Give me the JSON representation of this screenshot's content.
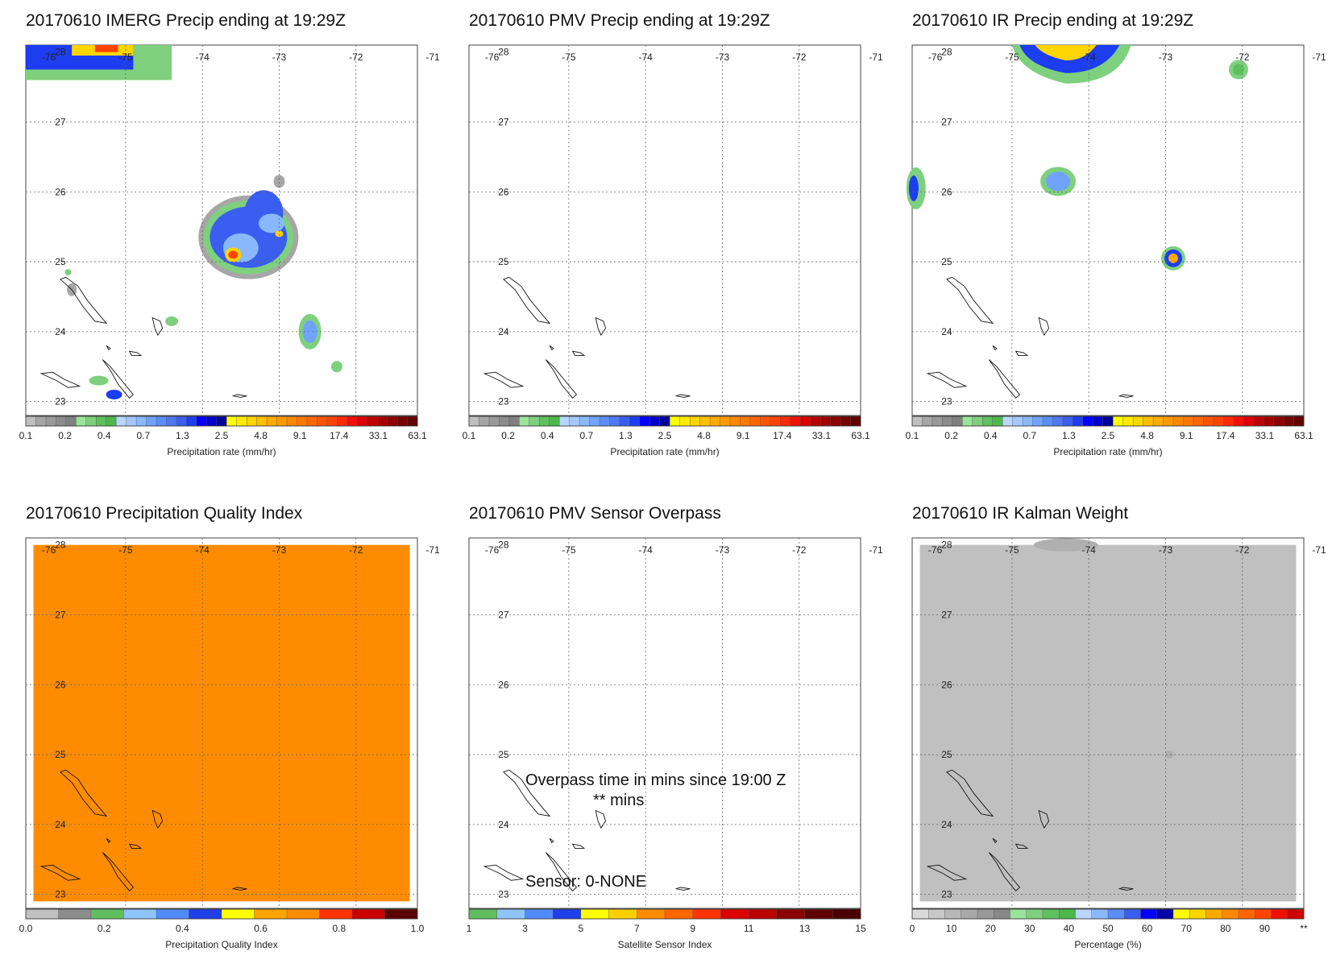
{
  "figure": {
    "colors": {
      "precip": [
        "#bfbfbf",
        "#a6a6a6",
        "#999999",
        "#8c8c8c",
        "#808080",
        "#9ae39a",
        "#7ed07e",
        "#5fc05f",
        "#4cb84c",
        "#b9d6ff",
        "#a3c8ff",
        "#8ab8ff",
        "#6fa3ff",
        "#5a8df7",
        "#4f78f0",
        "#3a5ef0",
        "#1d3df0",
        "#0000ff",
        "#0000cc",
        "#000099",
        "#ffff00",
        "#ffea00",
        "#ffd500",
        "#ffbf00",
        "#ffaa00",
        "#ff9900",
        "#ff8800",
        "#ff7700",
        "#ff6600",
        "#ff5500",
        "#ff4400",
        "#ff2a00",
        "#ee1100",
        "#dd0000",
        "#bb0000",
        "#a30000",
        "#8b0000",
        "#760000",
        "#600000"
      ],
      "quality": [
        "#c0c0c0",
        "#8c8c8c",
        "#5fbf5f",
        "#8ec4ff",
        "#4f8bff",
        "#1f3fe8",
        "#ffff00",
        "#ffa500",
        "#ff8c00",
        "#ff3300",
        "#cc0000",
        "#5a0000"
      ],
      "sensor": [
        "#5fbf5f",
        "#8ec4ff",
        "#4f8bff",
        "#1f3fe8",
        "#ffff00",
        "#ffd000",
        "#ff8c00",
        "#ff6600",
        "#ff3300",
        "#dd0000",
        "#bb0000",
        "#8b0000",
        "#600000",
        "#4a0000"
      ],
      "kalman": [
        "#d9d9d9",
        "#c8c8c8",
        "#b8b8b8",
        "#a8a8a8",
        "#989898",
        "#888888",
        "#9ae39a",
        "#7ed07e",
        "#5fc05f",
        "#4cb84c",
        "#b9d6ff",
        "#8ab8ff",
        "#5a8df7",
        "#3a5ef0",
        "#0000ff",
        "#0000aa",
        "#ffff00",
        "#ffd500",
        "#ffaa00",
        "#ff8800",
        "#ff6600",
        "#ff4400",
        "#ee1100",
        "#cc0000"
      ],
      "quality_fill": "#ff8c00",
      "kalman_fill": "#c0c0c0"
    },
    "panels": [
      {
        "id": "imerg",
        "title": "20170610 IMERG Precip ending at 19:29Z",
        "cb_labels": [
          "0.1",
          "0.2",
          "0.4",
          "0.7",
          "1.3",
          "2.5",
          "4.8",
          "9.1",
          "17.4",
          "33.1",
          "63.1"
        ],
        "cb_title": "Precipitation rate (mm/hr)"
      },
      {
        "id": "pmv",
        "title": "20170610 PMV Precip ending at 19:29Z",
        "cb_labels": [
          "0.1",
          "0.2",
          "0.4",
          "0.7",
          "1.3",
          "2.5",
          "4.8",
          "9.1",
          "17.4",
          "33.1",
          "63.1"
        ],
        "cb_title": "Precipitation rate (mm/hr)"
      },
      {
        "id": "ir",
        "title": "20170610 IR Precip ending at 19:29Z",
        "cb_labels": [
          "0.1",
          "0.2",
          "0.4",
          "0.7",
          "1.3",
          "2.5",
          "4.8",
          "9.1",
          "17.4",
          "33.1",
          "63.1"
        ],
        "cb_title": "Precipitation rate (mm/hr)"
      },
      {
        "id": "quality",
        "title": "20170610 Precipitation Quality Index",
        "cb_labels": [
          "0.0",
          "0.2",
          "0.4",
          "0.6",
          "0.8",
          "1.0"
        ],
        "cb_title": "Precipitation Quality Index"
      },
      {
        "id": "overpass",
        "title": "20170610 PMV Sensor Overpass",
        "cb_labels": [
          "1",
          "3",
          "5",
          "7",
          "9",
          "11",
          "13",
          "15"
        ],
        "cb_title": "Satellite Sensor Index",
        "overpass_line1": "Overpass time in mins since 19:00 Z",
        "overpass_line2": "** mins",
        "sensor_text": "Sensor:   0-NONE"
      },
      {
        "id": "kalman",
        "title": "20170610 IR Kalman Weight",
        "cb_labels": [
          "0",
          "10",
          "20",
          "30",
          "40",
          "50",
          "60",
          "70",
          "80",
          "90",
          "**"
        ],
        "cb_title": "Percentage (%)"
      }
    ],
    "axes": {
      "lon_labels": [
        "-76",
        "-75",
        "-74",
        "-73",
        "-72",
        "-71"
      ],
      "lat_labels": [
        "28",
        "27",
        "26",
        "25",
        "24",
        "23"
      ]
    }
  }
}
